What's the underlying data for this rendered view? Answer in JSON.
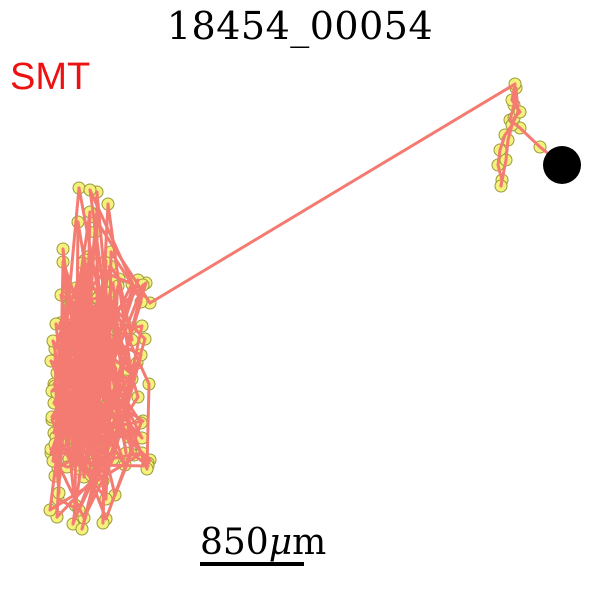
{
  "figure": {
    "title": "18454_00054",
    "method_label": "SMT",
    "scale_value": "850",
    "scale_unit_prefix": "μ",
    "scale_unit": "m"
  },
  "colors": {
    "track_line": "#f47b72",
    "point_fill": "#f4f27c",
    "point_stroke": "#9a9a3a",
    "method_label": "#ee1111",
    "end_marker": "#000000"
  }
}
